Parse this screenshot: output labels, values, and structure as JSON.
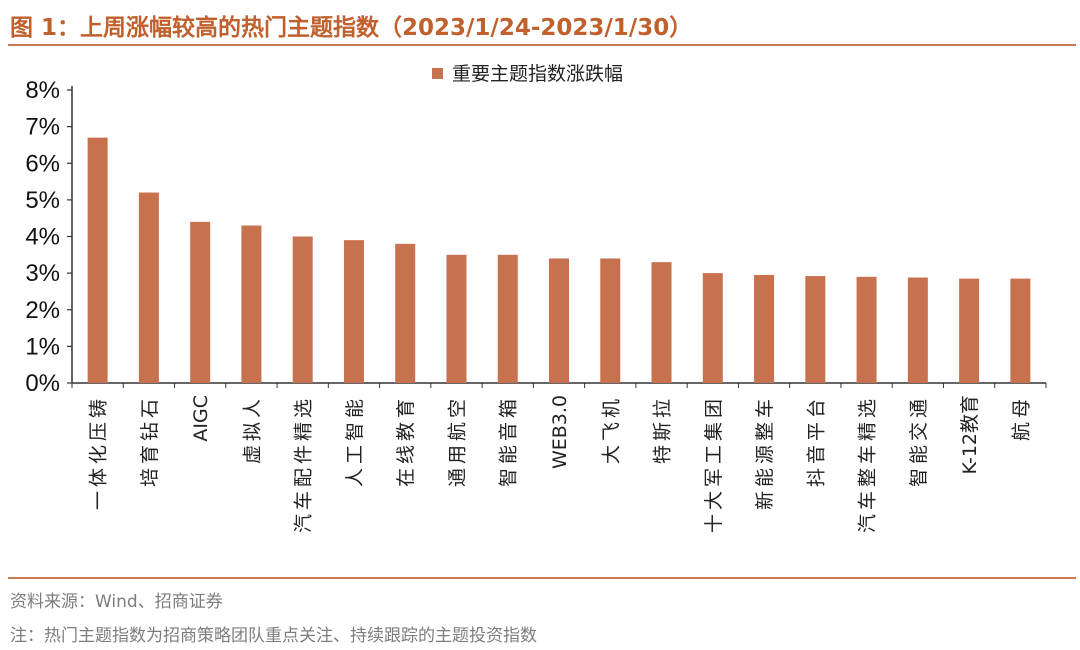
{
  "header": {
    "title": "图 1：上周涨幅较高的热门主题指数（2023/1/24-2023/1/30）"
  },
  "footer": {
    "source": "资料来源：Wind、招商证券",
    "note": "注：热门主题指数为招商策略团队重点关注、持续跟踪的主题投资指数"
  },
  "colors": {
    "bar": "#c8714e",
    "accent": "#c0602d",
    "rule": "#c97a55"
  },
  "chart_data": {
    "type": "bar",
    "title": "",
    "xlabel": "",
    "ylabel": "",
    "ylim": [
      0,
      8
    ],
    "yticks": [
      "0%",
      "1%",
      "2%",
      "3%",
      "4%",
      "5%",
      "6%",
      "7%",
      "8%"
    ],
    "legend": "top-center",
    "grid": false,
    "categories": [
      "一体化压铸",
      "培育钻石",
      "AIGC",
      "虚拟人",
      "汽车配件精选",
      "人工智能",
      "在线教育",
      "通用航空",
      "智能音箱",
      "WEB3.0",
      "大飞机",
      "特斯拉",
      "十大军工集团",
      "新能源整车",
      "抖音平台",
      "汽车整车精选",
      "智能交通",
      "K-12教育",
      "航母"
    ],
    "series": [
      {
        "name": "重要主题指数涨跌幅",
        "values": [
          6.7,
          5.2,
          4.4,
          4.3,
          4.0,
          3.9,
          3.8,
          3.5,
          3.5,
          3.4,
          3.4,
          3.3,
          3.0,
          2.95,
          2.92,
          2.9,
          2.88,
          2.85,
          2.85
        ]
      }
    ]
  }
}
